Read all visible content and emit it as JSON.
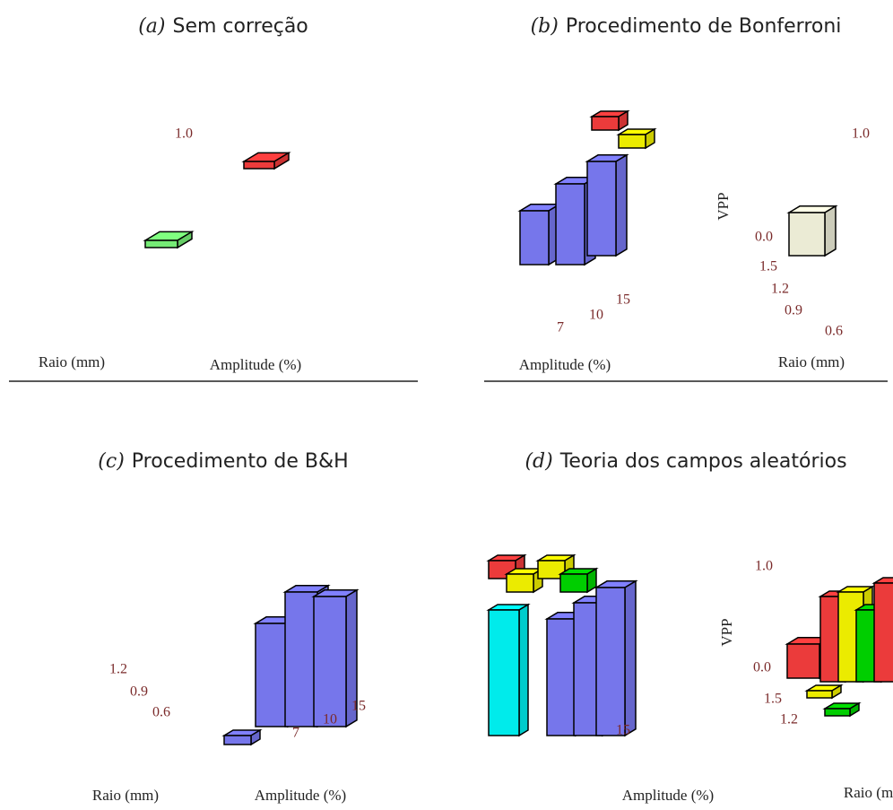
{
  "panels": [
    {
      "label": "(a)",
      "title": "Sem correção",
      "texts": [
        "1.0",
        "Raio (mm)",
        "Amplitude (%)"
      ]
    },
    {
      "label": "(b)",
      "title": "Procedimento de Bonferroni",
      "texts": [
        "1.0",
        "VPP",
        "0.0",
        "1.5",
        "1.2",
        "0.9",
        "0.6",
        "15",
        "10",
        "7",
        "Amplitude (%)",
        "Raio (mm)"
      ]
    },
    {
      "label": "(c)",
      "title": "Procedimento de B&H",
      "texts": [
        "1.2",
        "0.9",
        "0.6",
        "15",
        "10",
        "7",
        "Raio (mm)",
        "Amplitude (%)"
      ]
    },
    {
      "label": "(d)",
      "title": "Teoria dos campos aleatórios",
      "texts": [
        "1.0",
        "VPP",
        "0.0",
        "1.5",
        "1.2",
        "15",
        "Amplitude (%)",
        "Raio (mm)"
      ]
    }
  ]
}
